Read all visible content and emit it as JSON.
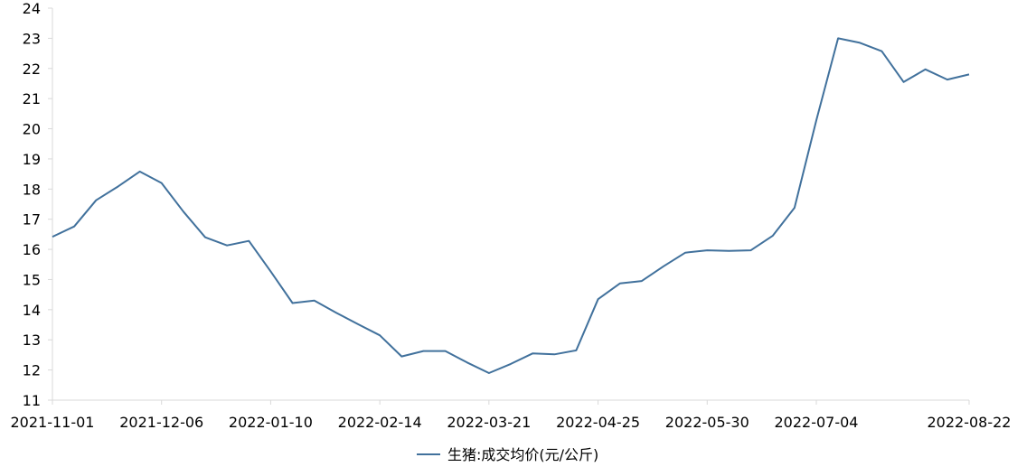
{
  "chart_data": {
    "type": "line",
    "title": "",
    "xlabel": "",
    "ylabel": "",
    "ylim": [
      11,
      24
    ],
    "y_ticks": [
      11,
      12,
      13,
      14,
      15,
      16,
      17,
      18,
      19,
      20,
      21,
      22,
      23,
      24
    ],
    "x_tick_labels": [
      "2021-11-01",
      "2021-12-06",
      "2022-01-10",
      "2022-02-14",
      "2022-03-21",
      "2022-04-25",
      "2022-05-30",
      "2022-07-04",
      "2022-08-22"
    ],
    "x": [
      "2021-11-01",
      "2021-11-08",
      "2021-11-15",
      "2021-11-22",
      "2021-11-29",
      "2021-12-06",
      "2021-12-13",
      "2021-12-20",
      "2021-12-27",
      "2022-01-03",
      "2022-01-10",
      "2022-01-17",
      "2022-01-24",
      "2022-01-31",
      "2022-02-07",
      "2022-02-14",
      "2022-02-21",
      "2022-02-28",
      "2022-03-07",
      "2022-03-14",
      "2022-03-21",
      "2022-03-28",
      "2022-04-04",
      "2022-04-11",
      "2022-04-18",
      "2022-04-25",
      "2022-05-02",
      "2022-05-09",
      "2022-05-16",
      "2022-05-23",
      "2022-05-30",
      "2022-06-06",
      "2022-06-13",
      "2022-06-20",
      "2022-06-27",
      "2022-07-04",
      "2022-07-11",
      "2022-07-18",
      "2022-07-25",
      "2022-08-01",
      "2022-08-08",
      "2022-08-15",
      "2022-08-22"
    ],
    "series": [
      {
        "name": "生猪:成交均价(元/公斤)",
        "color": "#41719c",
        "values": [
          16.42,
          16.76,
          17.63,
          18.08,
          18.58,
          18.2,
          17.25,
          16.4,
          16.13,
          16.28,
          15.27,
          14.22,
          14.3,
          13.9,
          13.52,
          13.15,
          12.45,
          12.63,
          12.63,
          12.25,
          11.9,
          12.2,
          12.55,
          12.52,
          12.65,
          14.35,
          14.87,
          14.95,
          15.44,
          15.89,
          15.97,
          15.95,
          15.97,
          16.45,
          17.38,
          20.28,
          23.0,
          22.85,
          22.57,
          21.55,
          21.97,
          21.63,
          21.8
        ]
      }
    ],
    "legend": {
      "position": "bottom"
    },
    "grid": false
  }
}
